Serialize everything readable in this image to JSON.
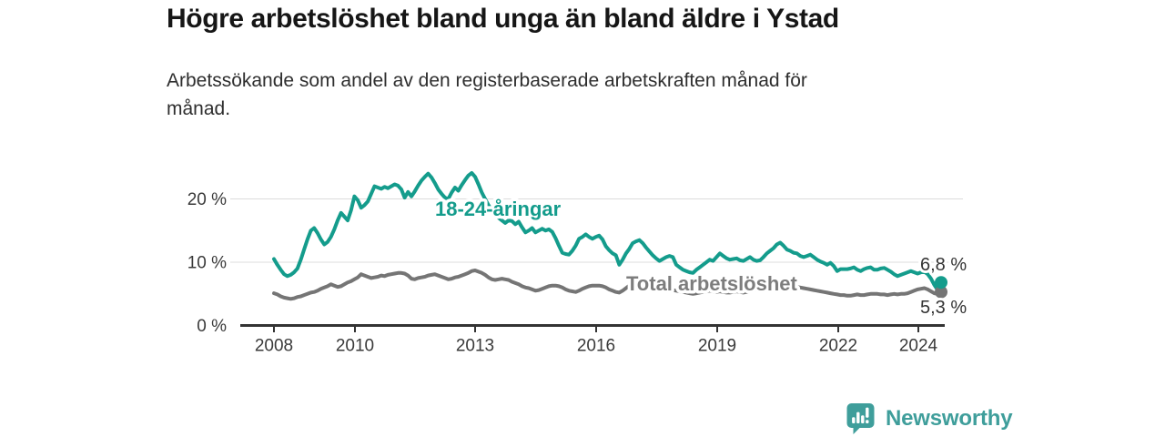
{
  "title": "Högre arbetslöshet bland unga än bland äldre i Ystad",
  "subtitle_line1": "Arbetssökande som andel av den registerbaserade arbetskraften månad för",
  "subtitle_line2": "månad.",
  "branding": {
    "logo_text": "Newsworthy",
    "logo_icon": "speech-bubble-bar-chart-icon",
    "brand_color": "#3f9e9b"
  },
  "colors": {
    "youth_line": "#149c8c",
    "total_line": "#757575",
    "total_label": "#7d7d7d",
    "grid": "#dcdcdc",
    "axis": "#333333",
    "annotation_text": "#333333",
    "title_text": "#161616"
  },
  "chart_data": {
    "type": "line",
    "title": "Högre arbetslöshet bland unga än bland äldre i Ystad",
    "subtitle": "Arbetssökande som andel av den registerbaserade arbetskraften månad för månad.",
    "x_unit": "month",
    "x_start": "2008-01",
    "x_end": "2024-08",
    "ylim": [
      0,
      25
    ],
    "grid": "horizontal",
    "legend_position": "inline-labels",
    "yticks": [
      {
        "value": 0,
        "label": "0 %"
      },
      {
        "value": 10,
        "label": "10 %"
      },
      {
        "value": 20,
        "label": "20 %"
      }
    ],
    "xticks": [
      {
        "year": 2008,
        "label": "2008"
      },
      {
        "year": 2010,
        "label": "2010"
      },
      {
        "year": 2013,
        "label": "2013"
      },
      {
        "year": 2016,
        "label": "2016"
      },
      {
        "year": 2019,
        "label": "2019"
      },
      {
        "year": 2022,
        "label": "2022"
      },
      {
        "year": 2024,
        "label": "2024"
      }
    ],
    "series": [
      {
        "name": "18-24-åringar",
        "color": "#149c8c",
        "end_label": "6,8 %",
        "end_value": 6.8,
        "values": [
          10.5,
          9.6,
          8.8,
          8.1,
          7.8,
          8.0,
          8.4,
          9.0,
          10.4,
          12.0,
          13.6,
          15.0,
          15.4,
          14.6,
          13.6,
          12.8,
          13.2,
          14.0,
          15.2,
          16.6,
          17.8,
          17.2,
          16.6,
          18.2,
          20.4,
          19.8,
          18.6,
          19.0,
          19.6,
          20.8,
          22.0,
          21.8,
          21.6,
          21.9,
          21.7,
          22.0,
          22.3,
          22.1,
          21.5,
          20.2,
          21.1,
          20.4,
          21.2,
          22.1,
          22.9,
          23.5,
          24.0,
          23.4,
          22.5,
          21.5,
          20.8,
          20.2,
          20.0,
          21.0,
          21.8,
          21.3,
          22.2,
          23.0,
          23.7,
          24.1,
          23.5,
          22.3,
          21.0,
          20.0,
          19.0,
          18.2,
          17.5,
          17.0,
          16.6,
          16.2,
          16.6,
          16.5,
          16.0,
          16.4,
          15.5,
          14.7,
          15.0,
          15.4,
          14.7,
          15.0,
          15.3,
          15.0,
          15.2,
          14.8,
          13.8,
          12.6,
          11.5,
          11.3,
          11.2,
          11.8,
          12.6,
          13.7,
          14.0,
          14.4,
          14.0,
          13.7,
          14.0,
          14.2,
          13.6,
          12.5,
          11.9,
          11.4,
          11.1,
          9.6,
          10.4,
          11.4,
          12.1,
          13.0,
          13.3,
          13.5,
          13.0,
          12.3,
          11.7,
          11.1,
          10.6,
          10.2,
          10.5,
          10.8,
          11.0,
          10.8,
          9.6,
          9.2,
          8.8,
          8.6,
          8.4,
          8.3,
          8.8,
          9.2,
          9.6,
          10.0,
          10.4,
          10.2,
          10.8,
          11.4,
          11.0,
          10.6,
          10.4,
          10.5,
          10.6,
          10.3,
          10.2,
          10.5,
          10.8,
          10.4,
          10.2,
          10.3,
          10.8,
          11.4,
          11.8,
          12.2,
          12.8,
          13.1,
          12.6,
          12.0,
          11.8,
          11.5,
          11.4,
          11.0,
          10.8,
          11.0,
          11.2,
          10.8,
          10.4,
          10.1,
          9.9,
          9.6,
          9.9,
          9.4,
          8.6,
          8.9,
          8.9,
          8.9,
          9.0,
          9.2,
          8.8,
          8.6,
          8.9,
          9.1,
          9.2,
          8.8,
          8.8,
          9.0,
          9.1,
          8.8,
          8.5,
          8.1,
          7.8,
          8.0,
          8.2,
          8.4,
          8.6,
          8.4,
          8.2,
          8.4,
          8.5,
          8.1,
          7.4,
          6.4,
          5.6,
          6.8
        ]
      },
      {
        "name": "Total arbetslöshet",
        "color": "#757575",
        "end_label": "5,3 %",
        "end_value": 5.3,
        "values": [
          5.1,
          4.9,
          4.6,
          4.4,
          4.3,
          4.2,
          4.3,
          4.5,
          4.6,
          4.8,
          5.0,
          5.2,
          5.3,
          5.5,
          5.8,
          6.0,
          6.2,
          6.5,
          6.3,
          6.1,
          6.2,
          6.5,
          6.8,
          7.0,
          7.3,
          7.6,
          8.1,
          7.9,
          7.7,
          7.5,
          7.6,
          7.7,
          7.9,
          7.8,
          8.0,
          8.1,
          8.2,
          8.3,
          8.3,
          8.2,
          7.9,
          7.4,
          7.3,
          7.5,
          7.6,
          7.7,
          7.9,
          8.0,
          8.1,
          7.9,
          7.7,
          7.5,
          7.3,
          7.4,
          7.6,
          7.7,
          7.9,
          8.1,
          8.3,
          8.6,
          8.7,
          8.5,
          8.3,
          8.0,
          7.6,
          7.3,
          7.2,
          7.3,
          7.4,
          7.3,
          7.2,
          6.9,
          6.7,
          6.5,
          6.2,
          6.0,
          5.9,
          5.7,
          5.5,
          5.6,
          5.8,
          6.0,
          6.2,
          6.3,
          6.3,
          6.2,
          6.0,
          5.7,
          5.5,
          5.4,
          5.3,
          5.5,
          5.8,
          6.0,
          6.2,
          6.3,
          6.3,
          6.3,
          6.2,
          6.0,
          5.7,
          5.5,
          5.3,
          5.2,
          5.5,
          5.9,
          6.3,
          6.5,
          6.8,
          6.6,
          6.3,
          6.0,
          5.8,
          5.6,
          5.5,
          5.4,
          5.5,
          5.6,
          5.7,
          5.6,
          5.5,
          5.4,
          5.3,
          5.2,
          5.1,
          5.0,
          5.1,
          5.2,
          5.3,
          5.4,
          5.5,
          5.4,
          5.3,
          5.4,
          5.3,
          5.2,
          5.2,
          5.3,
          5.4,
          5.3,
          5.2,
          5.3,
          5.5,
          5.6,
          5.7,
          5.8,
          6.0,
          6.3,
          6.5,
          6.6,
          6.7,
          6.6,
          6.5,
          6.4,
          6.3,
          6.2,
          6.1,
          6.0,
          5.9,
          5.8,
          5.7,
          5.6,
          5.5,
          5.4,
          5.3,
          5.2,
          5.1,
          5.0,
          4.9,
          4.8,
          4.8,
          4.7,
          4.7,
          4.8,
          4.9,
          4.8,
          4.8,
          4.9,
          5.0,
          5.0,
          5.0,
          4.9,
          4.9,
          4.8,
          4.9,
          5.0,
          4.9,
          5.0,
          5.0,
          5.1,
          5.3,
          5.5,
          5.7,
          5.8,
          5.9,
          5.7,
          5.4,
          5.1,
          5.0,
          5.3
        ]
      }
    ]
  }
}
